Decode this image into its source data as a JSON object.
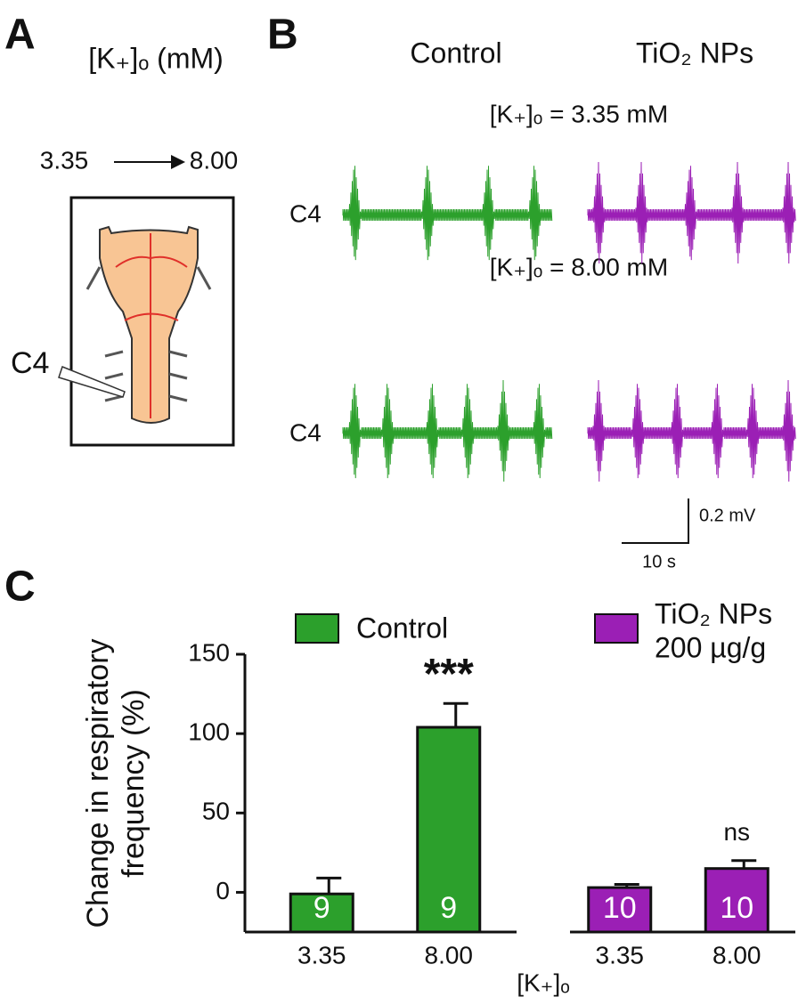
{
  "panel_a": {
    "label": "A",
    "title": "[K₊]ₒ (mM)",
    "from": "3.35",
    "to": "8.00",
    "nerve": "C4"
  },
  "panel_b": {
    "label": "B",
    "columns": [
      "Control",
      "TiO₂ NPs"
    ],
    "conditions": [
      "[K₊]ₒ = 3.35 mM",
      "[K₊]ₒ = 8.00 mM"
    ],
    "rows": [
      "C4",
      "C4"
    ],
    "scale_v": "0.2 mV",
    "scale_t": "10 s"
  },
  "chart_data": {
    "type": "bar",
    "panel_label": "C",
    "y_label": [
      "Change in respiratory",
      "frequency (%)"
    ],
    "x_label": "[K₊]ₒ",
    "categories": [
      "3.35",
      "8.00"
    ],
    "series": [
      {
        "name": "Control",
        "color": "#2ca02c",
        "values": [
          -1,
          104
        ],
        "errors": [
          10,
          15
        ],
        "n_labels": [
          "9",
          "9"
        ],
        "significance": [
          null,
          "***"
        ]
      },
      {
        "name": "TiO₂ NPs",
        "subname": "200 µg/g",
        "color": "#9b1fb5",
        "values": [
          3,
          15
        ],
        "errors": [
          2,
          5
        ],
        "n_labels": [
          "10",
          "10"
        ],
        "significance": [
          null,
          "ns"
        ]
      }
    ],
    "ylim": [
      -25,
      150
    ],
    "yticks": [
      0,
      50,
      100,
      150
    ]
  }
}
